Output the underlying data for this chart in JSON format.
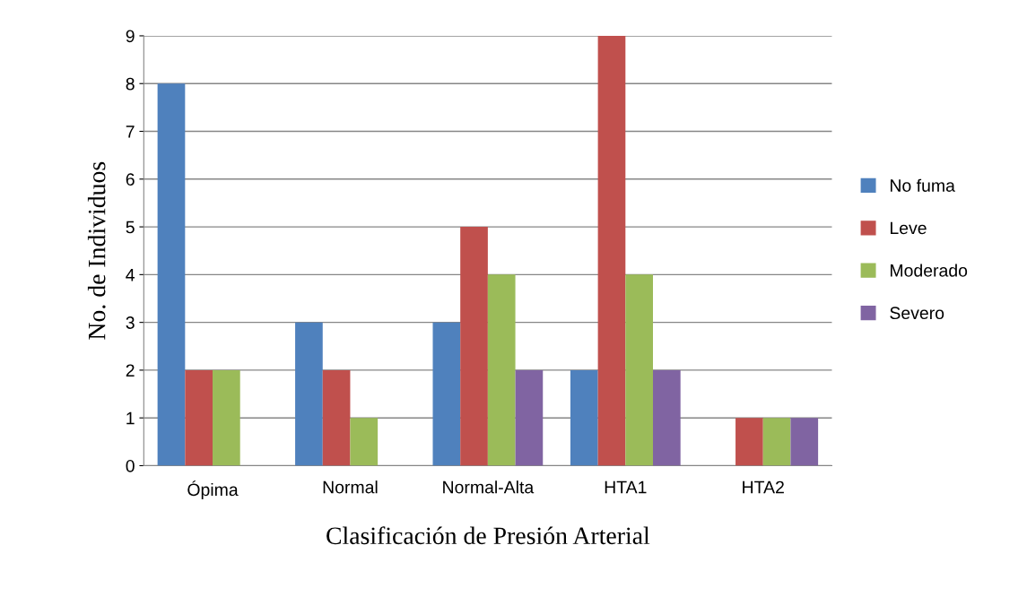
{
  "chart_data": {
    "type": "bar",
    "xlabel": "Clasificación de Presión Arterial",
    "ylabel": "No. de Individuos",
    "categories": [
      "Ópima",
      "Normal",
      "Normal-Alta",
      "HTA1",
      "HTA2"
    ],
    "series": [
      {
        "name": "No fuma",
        "color": "#4f81bd",
        "values": [
          8,
          3,
          3,
          2,
          0
        ]
      },
      {
        "name": "Leve",
        "color": "#c0504d",
        "values": [
          2,
          2,
          5,
          9,
          1
        ]
      },
      {
        "name": "Moderado",
        "color": "#9bbb59",
        "values": [
          2,
          1,
          4,
          4,
          1
        ]
      },
      {
        "name": "Severo",
        "color": "#8064a2",
        "values": [
          0,
          0,
          2,
          2,
          1
        ]
      }
    ],
    "ylim": [
      0,
      9
    ],
    "yticks": [
      0,
      1,
      2,
      3,
      4,
      5,
      6,
      7,
      8,
      9
    ],
    "grid": "y",
    "legend": "right"
  }
}
